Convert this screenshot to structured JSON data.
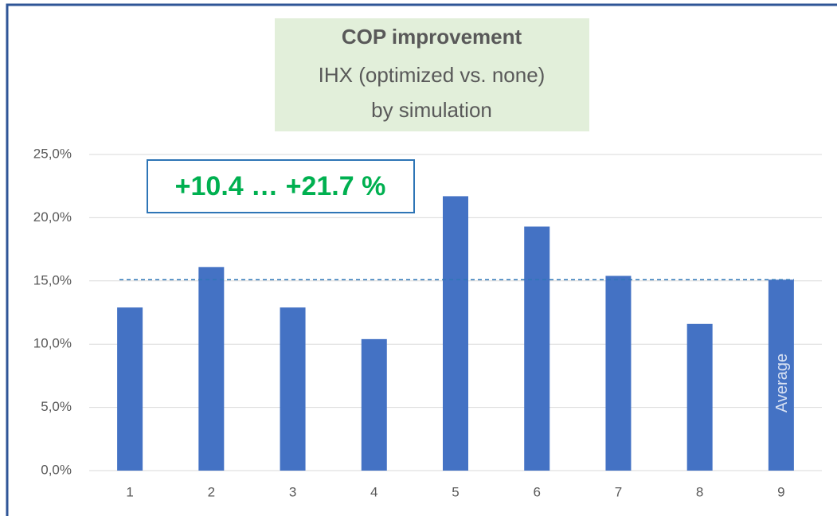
{
  "chart_data": {
    "type": "bar",
    "title": "COP improvement",
    "subtitle": [
      "IHX (optimized vs. none)",
      "by simulation"
    ],
    "annotation": "+10.4 … +21.7 %",
    "average_label": "Average",
    "categories": [
      "1",
      "2",
      "3",
      "4",
      "5",
      "6",
      "7",
      "8",
      "9"
    ],
    "values": [
      12.9,
      16.1,
      12.9,
      10.4,
      21.7,
      19.3,
      15.4,
      11.6,
      15.1
    ],
    "color": "#4472c4",
    "reference_line": 15.1,
    "reference_color": "#2e75b6",
    "ylim": [
      0,
      25
    ],
    "yticks": [
      {
        "value": 0,
        "label": "0,0%"
      },
      {
        "value": 5,
        "label": "5,0%"
      },
      {
        "value": 10,
        "label": "10,0%"
      },
      {
        "value": 15,
        "label": "15,0%"
      },
      {
        "value": 20,
        "label": "20,0%"
      },
      {
        "value": 25,
        "label": "25,0%"
      }
    ],
    "grid": true
  }
}
